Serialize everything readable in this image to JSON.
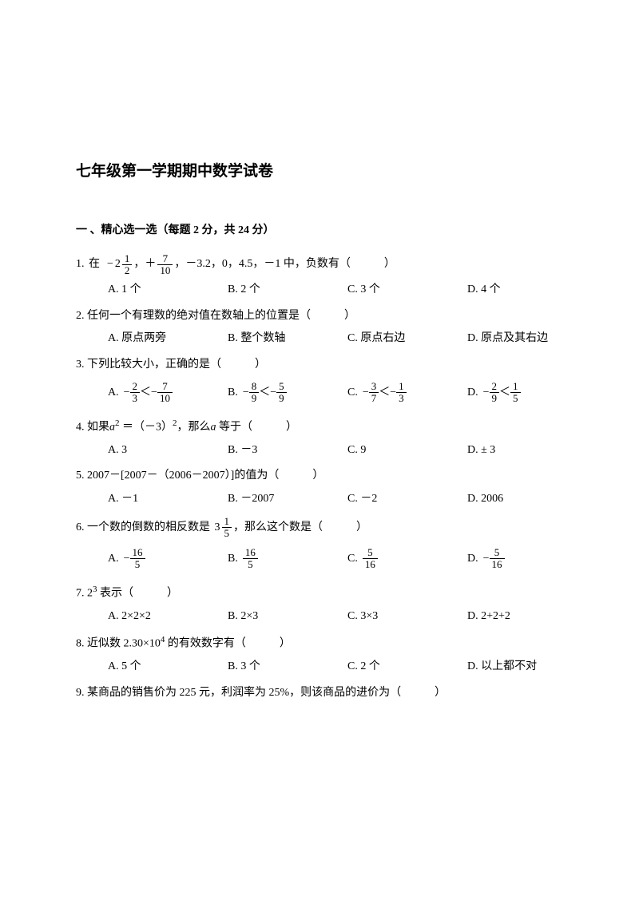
{
  "title": "七年级第一学期期中数学试卷",
  "section1": {
    "header": "一 、精心选一选（每题 2 分，共 24 分）"
  },
  "q1": {
    "num": "1.",
    "textA": "在",
    "textB": "，＋",
    "textC": "，－3.2，0，4.5，－1 中，负数有（　　　）",
    "optA": "A. 1 个",
    "optB": "B. 2 个",
    "optC": "C. 3 个",
    "optD": "D. 4 个"
  },
  "q2": {
    "text": "2.  任何一个有理数的绝对值在数轴上的位置是（　　　）",
    "optA": "A. 原点两旁",
    "optB": "B. 整个数轴",
    "optC": "C. 原点右边",
    "optD": "D. 原点及其右边"
  },
  "q3": {
    "text": "3.  下列比较大小，正确的是（　　　）",
    "optA": "A.",
    "optB": "B.",
    "optC": "C.",
    "optD": "D."
  },
  "q4": {
    "textA": "4.  如果",
    "textB": " ＝（－3）",
    "textC": "，那么",
    "textD": " 等于（　　　）",
    "optA": "A. 3",
    "optB": "B. －3",
    "optC": "C. 9",
    "optD": "D. ± 3"
  },
  "q5": {
    "text": "5.  2007－[2007－（2006－2007）]的值为（　　　）",
    "optA": "A. －1",
    "optB": "B. －2007",
    "optC": "C. －2",
    "optD": "D. 2006"
  },
  "q6": {
    "textA": "6.  一个数的倒数的相反数是",
    "textB": "，那么这个数是（　　　）",
    "optA": "A.",
    "optB": "B.",
    "optC": "C.",
    "optD": "D."
  },
  "q7": {
    "textA": "7.  ",
    "textB": " 表示（　　　）",
    "optA": "A. 2×2×2",
    "optB": "B. 2×3",
    "optC": "C. 3×3",
    "optD": "D. 2+2+2"
  },
  "q8": {
    "textA": "8.  近似数 2.30×",
    "textB": " 的有效数字有（　　　）",
    "optA": "A. 5 个",
    "optB": "B. 3 个",
    "optC": "C. 2 个",
    "optD": "D. 以上都不对"
  },
  "q9": {
    "text": "9.  某商品的销售价为 225 元，利润率为 25%，则该商品的进价为（　　　）"
  },
  "fractions": {
    "neg2half": {
      "whole": "2",
      "num": "1",
      "den": "2"
    },
    "seven10": {
      "num": "7",
      "den": "10"
    },
    "two3": {
      "num": "2",
      "den": "3"
    },
    "seven10b": {
      "num": "7",
      "den": "10"
    },
    "eight9": {
      "num": "8",
      "den": "9"
    },
    "five9": {
      "num": "5",
      "den": "9"
    },
    "three7": {
      "num": "3",
      "den": "7"
    },
    "one3": {
      "num": "1",
      "den": "3"
    },
    "two9": {
      "num": "2",
      "den": "9"
    },
    "one5": {
      "num": "1",
      "den": "5"
    },
    "three1_5": {
      "whole": "3",
      "num": "1",
      "den": "5"
    },
    "sixteen5a": {
      "num": "16",
      "den": "5"
    },
    "sixteen5b": {
      "num": "16",
      "den": "5"
    },
    "five16a": {
      "num": "5",
      "den": "16"
    },
    "five16b": {
      "num": "5",
      "den": "16"
    }
  },
  "sym": {
    "neg": "−",
    "lt": "＜",
    "a": "a",
    "two": "2",
    "three": "3",
    "sup2": "2",
    "ten": "10",
    "sup4": "4"
  }
}
